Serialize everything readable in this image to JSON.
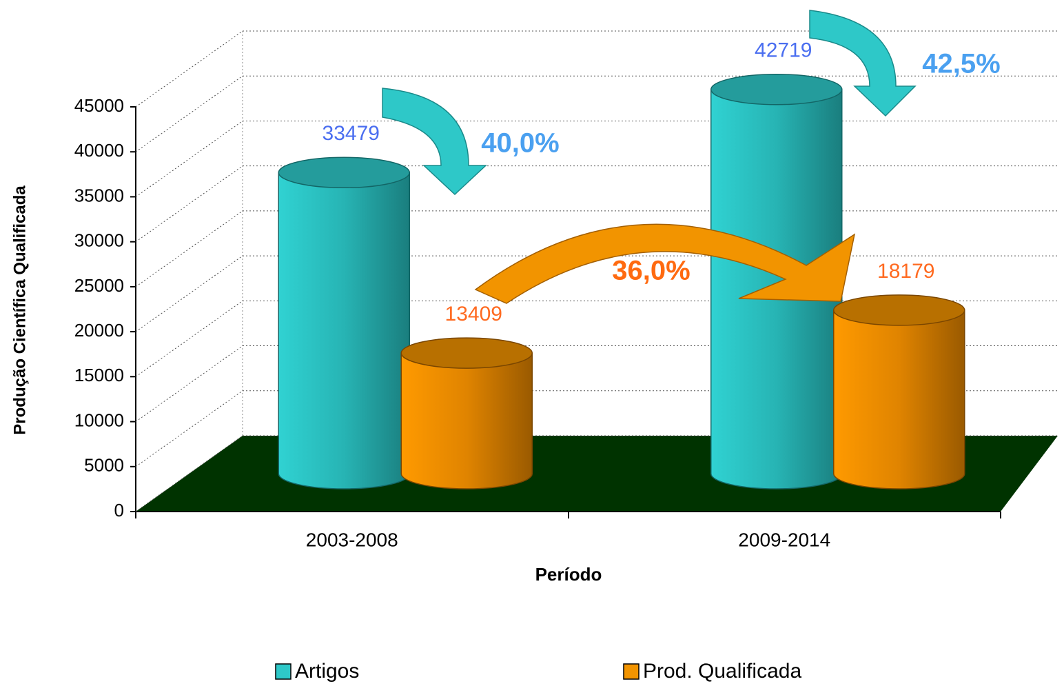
{
  "chart_data": {
    "type": "bar3d",
    "categories": [
      "2003-2008",
      "2009-2014"
    ],
    "series": [
      {
        "name": "Artigos",
        "color": "#2ec8c8",
        "values": [
          33479,
          42719
        ]
      },
      {
        "name": "Prod. Qualificada",
        "color": "#f29400",
        "values": [
          13409,
          18179
        ]
      }
    ],
    "ylim": [
      0,
      45000
    ],
    "yticks": [
      0,
      5000,
      10000,
      15000,
      20000,
      25000,
      30000,
      35000,
      40000,
      45000
    ],
    "ylabel": "Produção Científica Qualificada",
    "xlabel": "Período",
    "grid": true,
    "legend": "bottom",
    "annotations": [
      "40,0%",
      "42,5%",
      "36,0%"
    ]
  }
}
